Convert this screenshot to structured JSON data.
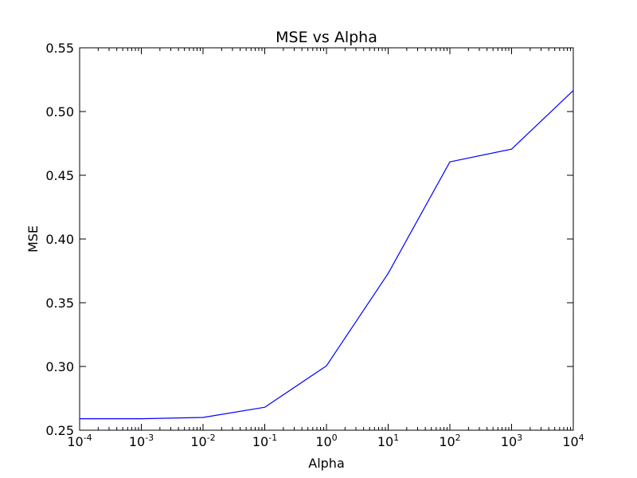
{
  "chart_data": {
    "type": "line",
    "title": "MSE vs Alpha",
    "xlabel": "Alpha",
    "ylabel": "MSE",
    "x_scale": "log",
    "xlim": [
      0.0001,
      10000
    ],
    "ylim": [
      0.25,
      0.55
    ],
    "grid": false,
    "x_ticks": [
      {
        "value": 0.0001,
        "base": "10",
        "exp": "-4"
      },
      {
        "value": 0.001,
        "base": "10",
        "exp": "-3"
      },
      {
        "value": 0.01,
        "base": "10",
        "exp": "-2"
      },
      {
        "value": 0.1,
        "base": "10",
        "exp": "-1"
      },
      {
        "value": 1,
        "base": "10",
        "exp": "0"
      },
      {
        "value": 10,
        "base": "10",
        "exp": "1"
      },
      {
        "value": 100,
        "base": "10",
        "exp": "2"
      },
      {
        "value": 1000,
        "base": "10",
        "exp": "3"
      },
      {
        "value": 10000,
        "base": "10",
        "exp": "4"
      }
    ],
    "y_ticks": [
      "0.25",
      "0.30",
      "0.35",
      "0.40",
      "0.45",
      "0.50",
      "0.55"
    ],
    "series": [
      {
        "color": "#0000ff",
        "x": [
          0.0001,
          0.001,
          0.01,
          0.1,
          1,
          10,
          100,
          1000,
          10000
        ],
        "y": [
          0.259,
          0.259,
          0.26,
          0.268,
          0.3005,
          0.373,
          0.4605,
          0.4705,
          0.5165
        ]
      }
    ]
  }
}
